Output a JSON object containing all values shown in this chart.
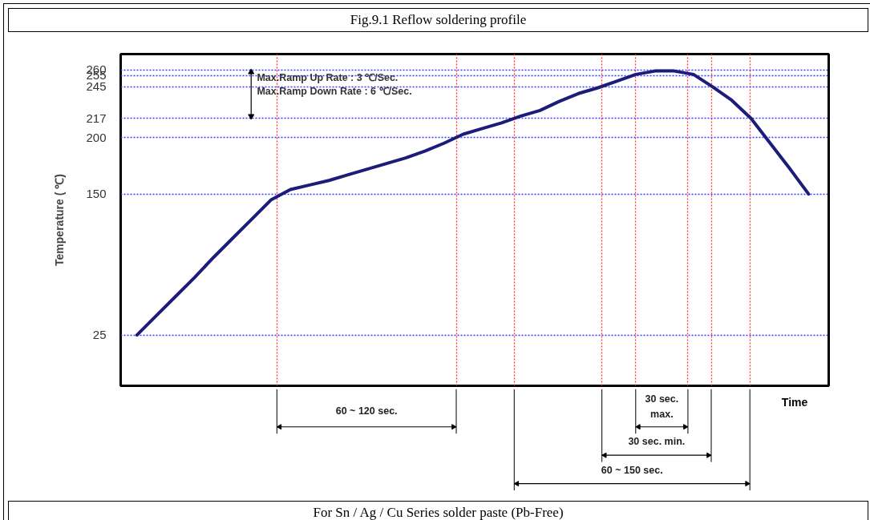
{
  "chart_data": {
    "type": "line",
    "title": "Fig.9.1 Reflow soldering profile",
    "xlabel": "Time",
    "ylabel": "Temperature ( ℃)",
    "categories": [
      null,
      null,
      null,
      null,
      null,
      null,
      null,
      null,
      null,
      null,
      null,
      null,
      null,
      null,
      null,
      null,
      null,
      null,
      null,
      null,
      null,
      null,
      null,
      null,
      null,
      null,
      null,
      null,
      null,
      null,
      null,
      null,
      null,
      null,
      null,
      null
    ],
    "series": [
      {
        "color": "#1c1c7a",
        "values": [
          25,
          42,
          59,
          76,
          94,
          111,
          128,
          145,
          154,
          158,
          162,
          167,
          172,
          177,
          182,
          188,
          195,
          203,
          208,
          213,
          219,
          224,
          232,
          239,
          244,
          250,
          256,
          259,
          259,
          256,
          245,
          233,
          217,
          195,
          173,
          150
        ]
      }
    ],
    "ylim": [
      -20,
      274
    ],
    "yticks": [
      25,
      150,
      200,
      217,
      245,
      255,
      260
    ],
    "grid": true,
    "annotations": [
      "Max.Ramp Up Rate : 3 ℃/Sec.",
      "Max.Ramp Down Rate : 6 ℃/Sec.",
      "60 ~ 120 sec.",
      "30 sec.\nmax.",
      "30 sec. min.",
      "60 ~ 150 sec.",
      "For Sn / Ag / Cu Series solder paste (Pb-Free)"
    ]
  }
}
